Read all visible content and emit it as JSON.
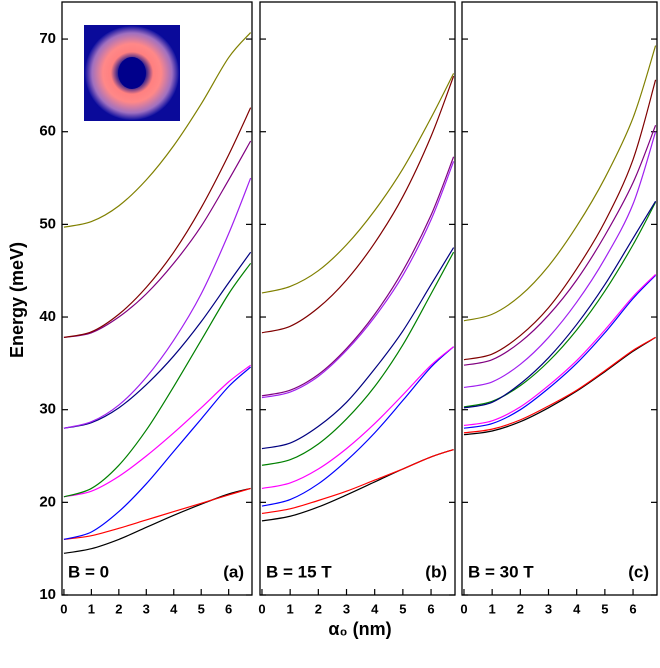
{
  "chart_data": [
    {
      "type": "line",
      "ylabel": "Energy (meV)",
      "annotation": "B = 0",
      "panel_label": "(a)",
      "xlim": [
        -0.07,
        6.85
      ],
      "xticks": [
        0,
        1,
        2,
        3,
        4,
        5,
        6
      ],
      "ylim": [
        10,
        74
      ],
      "yticks": [
        10,
        20,
        30,
        40,
        50,
        60,
        70
      ],
      "x": [
        0,
        1,
        2,
        3,
        4,
        5,
        6,
        6.8
      ],
      "series": [
        {
          "color": "#000000",
          "values": [
            14.5,
            15,
            16,
            17.3,
            18.6,
            19.8,
            20.9,
            21.5
          ]
        },
        {
          "color": "#ff0000",
          "values": [
            16,
            16.4,
            17.2,
            18.1,
            19,
            19.9,
            20.8,
            21.5
          ]
        },
        {
          "color": "#0000ff",
          "values": [
            16,
            16.8,
            19,
            22,
            25.5,
            29,
            32.5,
            34.6
          ]
        },
        {
          "color": "#ff00ff",
          "values": [
            20.6,
            21.2,
            22.8,
            25,
            27.5,
            30.2,
            33,
            34.8
          ]
        },
        {
          "color": "#008000",
          "values": [
            20.6,
            21.5,
            24,
            27.8,
            32.5,
            37.5,
            42.5,
            45.8
          ]
        },
        {
          "color": "#000080",
          "values": [
            28,
            28.6,
            30.2,
            32.7,
            35.8,
            39.5,
            43.7,
            47
          ]
        },
        {
          "color": "#a020f0",
          "values": [
            28,
            28.7,
            30.5,
            33.5,
            37.5,
            42.5,
            49,
            55
          ]
        },
        {
          "color": "#800080",
          "values": [
            37.8,
            38.3,
            40,
            42.5,
            45.8,
            49.8,
            54.8,
            59
          ]
        },
        {
          "color": "#800000",
          "values": [
            37.8,
            38.4,
            40.3,
            43.2,
            47,
            51.8,
            57.5,
            62.6
          ]
        },
        {
          "color": "#808000",
          "values": [
            49.7,
            50.3,
            52,
            54.8,
            58.5,
            63,
            68,
            70.7
          ]
        }
      ]
    },
    {
      "type": "line",
      "xlabel": "α₀ (nm)",
      "annotation": "B = 15 T",
      "panel_label": "(b)",
      "xlim": [
        -0.07,
        6.85
      ],
      "xticks": [
        0,
        1,
        2,
        3,
        4,
        5,
        6
      ],
      "ylim": [
        10,
        74
      ],
      "x": [
        0,
        1,
        2,
        3,
        4,
        5,
        6,
        6.8
      ],
      "series": [
        {
          "color": "#000000",
          "values": [
            18,
            18.5,
            19.5,
            20.8,
            22.2,
            23.6,
            24.9,
            25.7
          ]
        },
        {
          "color": "#ff0000",
          "values": [
            18.8,
            19.3,
            20.2,
            21.2,
            22.4,
            23.6,
            24.9,
            25.7
          ]
        },
        {
          "color": "#0000ff",
          "values": [
            19.6,
            20.3,
            22,
            24.5,
            27.5,
            31,
            34.6,
            36.8
          ]
        },
        {
          "color": "#ff00ff",
          "values": [
            21.5,
            22.1,
            23.6,
            25.8,
            28.5,
            31.6,
            34.8,
            36.8
          ]
        },
        {
          "color": "#008000",
          "values": [
            24,
            24.6,
            26.3,
            29,
            32.5,
            37,
            42.5,
            47
          ]
        },
        {
          "color": "#000080",
          "values": [
            25.8,
            26.4,
            28.2,
            30.8,
            34.4,
            38.5,
            43.5,
            47.5
          ]
        },
        {
          "color": "#a020f0",
          "values": [
            31.3,
            31.9,
            33.6,
            36.4,
            40,
            44.5,
            50.5,
            56.8
          ]
        },
        {
          "color": "#800080",
          "values": [
            31.5,
            32.1,
            33.8,
            36.6,
            40.3,
            45,
            51,
            57.3
          ]
        },
        {
          "color": "#800000",
          "values": [
            38.3,
            39,
            41,
            44,
            48,
            53,
            59.5,
            66
          ]
        },
        {
          "color": "#808000",
          "values": [
            42.6,
            43.3,
            45,
            47.8,
            51.5,
            56,
            61.5,
            66.3
          ]
        }
      ]
    },
    {
      "type": "line",
      "annotation": "B = 30 T",
      "panel_label": "(c)",
      "xlim": [
        -0.07,
        6.85
      ],
      "xticks": [
        0,
        1,
        2,
        3,
        4,
        5,
        6
      ],
      "ylim": [
        10,
        74
      ],
      "x": [
        0,
        1,
        2,
        3,
        4,
        5,
        6,
        6.8
      ],
      "series": [
        {
          "color": "#000000",
          "values": [
            27.3,
            27.7,
            28.7,
            30.2,
            32,
            34.1,
            36.3,
            37.8
          ]
        },
        {
          "color": "#ff0000",
          "values": [
            27.5,
            27.9,
            28.9,
            30.4,
            32.1,
            34.2,
            36.4,
            37.8
          ]
        },
        {
          "color": "#0000ff",
          "values": [
            28,
            28.5,
            30,
            32.3,
            35,
            38.3,
            42,
            44.5
          ]
        },
        {
          "color": "#ff00ff",
          "values": [
            28.3,
            28.8,
            30.3,
            32.6,
            35.3,
            38.6,
            42.2,
            44.6
          ]
        },
        {
          "color": "#008000",
          "values": [
            30.3,
            30.9,
            32.6,
            35.2,
            38.6,
            42.8,
            47.8,
            52.4
          ]
        },
        {
          "color": "#000080",
          "values": [
            30.2,
            30.8,
            32.8,
            35.6,
            39.2,
            43.5,
            48.5,
            52.5
          ]
        },
        {
          "color": "#a020f0",
          "values": [
            32.4,
            33,
            34.9,
            37.8,
            41.6,
            46.3,
            52.2,
            60
          ]
        },
        {
          "color": "#800080",
          "values": [
            34.8,
            35.4,
            37.3,
            40.2,
            44,
            48.8,
            54.5,
            60.7
          ]
        },
        {
          "color": "#800000",
          "values": [
            35.4,
            36,
            38,
            41,
            45.2,
            50.3,
            57,
            65.6
          ]
        },
        {
          "color": "#808000",
          "values": [
            39.6,
            40.3,
            42.3,
            45.5,
            49.8,
            55,
            61.5,
            69.3
          ]
        }
      ]
    }
  ]
}
